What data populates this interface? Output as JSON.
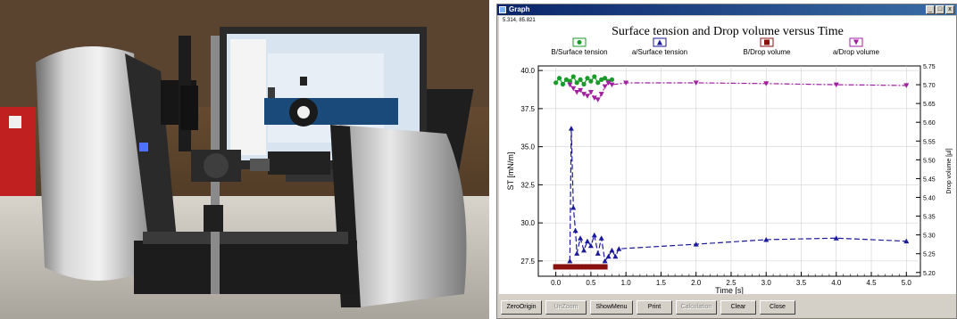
{
  "window": {
    "title": "Graph",
    "coord_readout": "5.314, 85.821",
    "min_label": "_",
    "max_label": "□",
    "close_label": "x"
  },
  "buttons": [
    {
      "label": "ZeroOrigin",
      "enabled": true
    },
    {
      "label": "UnZoom",
      "enabled": false
    },
    {
      "label": "ShowMenu",
      "enabled": true
    },
    {
      "label": "Print",
      "enabled": true
    },
    {
      "label": "Calculation",
      "enabled": false
    },
    {
      "label": "Clear",
      "enabled": true
    },
    {
      "label": "Close",
      "enabled": true
    }
  ],
  "colors": {
    "b_surface_tension": "#1a9a2a",
    "a_surface_tension": "#1a1a9a",
    "b_drop_volume": "#8a1010",
    "a_drop_volume": "#a020a0"
  },
  "chart_data": {
    "type": "line",
    "title": "Surface tension and Drop volume versus Time",
    "xlabel": "Time [s]",
    "ylabel": "ST [mN/m]",
    "y2label": "Drop volume [µl]",
    "xlim": [
      -0.25,
      5.2
    ],
    "ylim": [
      26.5,
      40.3
    ],
    "y2lim": [
      5.19,
      5.75
    ],
    "xticks": [
      "0.0",
      "0.5",
      "1.0",
      "1.5",
      "2.0",
      "2.5",
      "3.0",
      "3.5",
      "4.0",
      "4.5",
      "5.0"
    ],
    "yticks": [
      "27.5",
      "30.0",
      "32.5",
      "35.0",
      "37.5",
      "40.0"
    ],
    "y2ticks": [
      "5.20",
      "5.25",
      "5.30",
      "5.35",
      "5.40",
      "5.45",
      "5.50",
      "5.55",
      "5.60",
      "5.65",
      "5.70",
      "5.75"
    ],
    "grid": true,
    "legend_position": "top",
    "series": [
      {
        "name": "B/Surface tension",
        "axis": "left",
        "marker": "circle",
        "x": [
          0.0,
          0.05,
          0.1,
          0.15,
          0.2,
          0.25,
          0.3,
          0.35,
          0.4,
          0.45,
          0.5,
          0.55,
          0.6,
          0.65,
          0.7,
          0.75,
          0.8
        ],
        "y": [
          39.2,
          39.5,
          39.1,
          39.4,
          39.3,
          39.6,
          39.2,
          39.4,
          39.1,
          39.5,
          39.3,
          39.6,
          39.2,
          39.4,
          39.5,
          39.3,
          39.4
        ]
      },
      {
        "name": "a/Surface tension",
        "axis": "left",
        "marker": "triangle-up",
        "x": [
          0.2,
          0.22,
          0.25,
          0.28,
          0.3,
          0.35,
          0.4,
          0.45,
          0.5,
          0.55,
          0.6,
          0.65,
          0.7,
          0.75,
          0.8,
          0.85,
          0.9,
          2.0,
          3.0,
          4.0,
          5.0
        ],
        "y": [
          27.5,
          36.2,
          31.0,
          29.5,
          28.0,
          29.0,
          28.2,
          28.8,
          28.5,
          29.2,
          28.0,
          29.0,
          27.5,
          27.8,
          28.2,
          27.8,
          28.3,
          28.6,
          28.9,
          29.0,
          28.8
        ]
      },
      {
        "name": "B/Drop volume",
        "axis": "right",
        "marker": "square",
        "x": [
          0.0,
          0.05,
          0.1,
          0.15,
          0.2,
          0.25,
          0.3,
          0.35,
          0.4,
          0.45,
          0.5,
          0.55,
          0.6,
          0.65,
          0.7
        ],
        "y": [
          5.215,
          5.215,
          5.215,
          5.215,
          5.215,
          5.215,
          5.215,
          5.215,
          5.215,
          5.215,
          5.215,
          5.215,
          5.215,
          5.215,
          5.215
        ]
      },
      {
        "name": "a/Drop volume",
        "axis": "right",
        "marker": "triangle-down",
        "x": [
          0.2,
          0.25,
          0.3,
          0.35,
          0.4,
          0.45,
          0.5,
          0.55,
          0.6,
          0.65,
          0.7,
          0.75,
          0.8,
          1.0,
          2.0,
          3.0,
          4.0,
          5.0
        ],
        "y": [
          5.7,
          5.69,
          5.68,
          5.685,
          5.675,
          5.67,
          5.68,
          5.665,
          5.66,
          5.675,
          5.695,
          5.705,
          5.7,
          5.705,
          5.705,
          5.703,
          5.7,
          5.698
        ]
      }
    ]
  }
}
